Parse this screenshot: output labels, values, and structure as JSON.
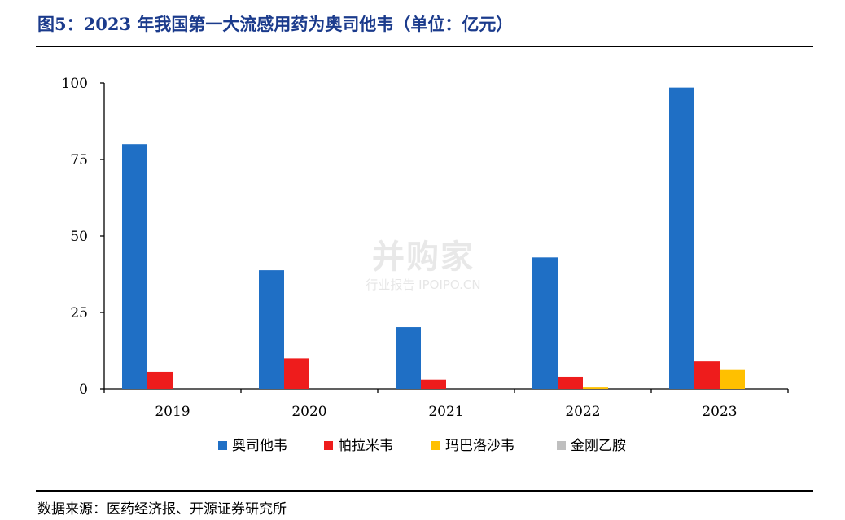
{
  "figure": {
    "title": "图5：2023 年我国第一大流感用药为奥司他韦（单位：亿元）",
    "source": "数据来源：医药经济报、开源证券研究所"
  },
  "watermark": {
    "main": "并购家",
    "sub": "行业报告 IPOIPO.CN"
  },
  "chart_data": {
    "type": "bar",
    "title": "图5：2023 年我国第一大流感用药为奥司他韦（单位：亿元）",
    "unit": "亿元",
    "categories": [
      "2019",
      "2020",
      "2021",
      "2022",
      "2023"
    ],
    "series": [
      {
        "name": "奥司他韦",
        "color": "#1f6fc5",
        "values": [
          80,
          38.8,
          20.2,
          43,
          98.5
        ]
      },
      {
        "name": "帕拉米韦",
        "color": "#ee1c1c",
        "values": [
          5.6,
          10,
          3,
          4,
          9
        ]
      },
      {
        "name": "玛巴洛沙韦",
        "color": "#ffc000",
        "values": [
          0,
          0,
          0,
          0.5,
          6.2
        ]
      },
      {
        "name": "金刚乙胺",
        "color": "#bfbfbf",
        "values": [
          0,
          0,
          0,
          0,
          0
        ]
      }
    ],
    "ylim": [
      0,
      100
    ],
    "yticks": [
      0,
      25,
      50,
      75,
      100
    ],
    "legend_position": "bottom",
    "grid": false
  }
}
